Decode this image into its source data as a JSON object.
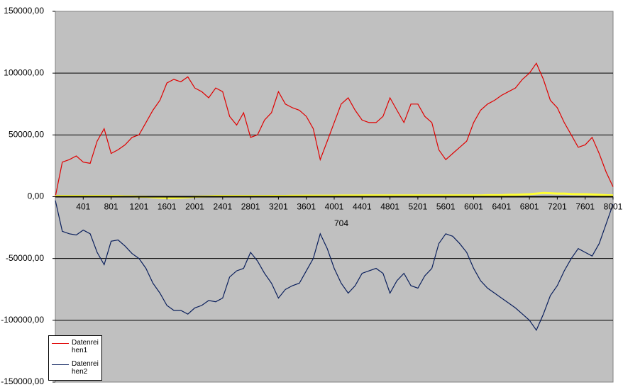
{
  "chart_data": {
    "type": "line",
    "xlabel": "704",
    "x": [
      1,
      101,
      201,
      301,
      401,
      501,
      601,
      701,
      801,
      901,
      1001,
      1101,
      1201,
      1301,
      1401,
      1501,
      1601,
      1701,
      1801,
      1901,
      2001,
      2101,
      2201,
      2301,
      2401,
      2501,
      2601,
      2701,
      2801,
      2901,
      3001,
      3101,
      3201,
      3301,
      3401,
      3501,
      3601,
      3701,
      3801,
      3901,
      4001,
      4101,
      4201,
      4301,
      4401,
      4501,
      4601,
      4701,
      4801,
      4901,
      5001,
      5101,
      5201,
      5301,
      5401,
      5501,
      5601,
      5701,
      5801,
      5901,
      6001,
      6101,
      6201,
      6301,
      6401,
      6501,
      6601,
      6701,
      6801,
      6901,
      7001,
      7101,
      7201,
      7301,
      7401,
      7501,
      7601,
      7701,
      7801,
      7901,
      8001
    ],
    "series": [
      {
        "name": "Datenreihen1",
        "color": "#e00000",
        "values": [
          0,
          28000,
          30000,
          33000,
          28000,
          27000,
          45000,
          55000,
          35000,
          38000,
          42000,
          48000,
          50000,
          60000,
          70000,
          78000,
          92000,
          95000,
          93000,
          97000,
          88000,
          85000,
          80000,
          88000,
          85000,
          65000,
          58000,
          68000,
          48000,
          50000,
          62000,
          68000,
          85000,
          75000,
          72000,
          70000,
          65000,
          55000,
          30000,
          45000,
          60000,
          75000,
          80000,
          70000,
          62000,
          60000,
          60000,
          65000,
          80000,
          70000,
          60000,
          75000,
          75000,
          65000,
          60000,
          38000,
          30000,
          35000,
          40000,
          45000,
          60000,
          70000,
          75000,
          78000,
          82000,
          85000,
          88000,
          95000,
          100000,
          108000,
          95000,
          78000,
          72000,
          60000,
          50000,
          40000,
          42000,
          48000,
          35000,
          20000,
          8000
        ]
      },
      {
        "name": "Datenreihen2",
        "color": "#0a1f5c",
        "values": [
          -3000,
          -28000,
          -30000,
          -31000,
          -27000,
          -30000,
          -45000,
          -55000,
          -36000,
          -35000,
          -40000,
          -46000,
          -50000,
          -58000,
          -70000,
          -78000,
          -88000,
          -92000,
          -92000,
          -95000,
          -90000,
          -88000,
          -84000,
          -85000,
          -82000,
          -65000,
          -60000,
          -58000,
          -45000,
          -52000,
          -62000,
          -70000,
          -82000,
          -75000,
          -72000,
          -70000,
          -60000,
          -50000,
          -30000,
          -42000,
          -58000,
          -70000,
          -78000,
          -72000,
          -62000,
          -60000,
          -58000,
          -62000,
          -78000,
          -68000,
          -62000,
          -72000,
          -74000,
          -64000,
          -58000,
          -38000,
          -30000,
          -32000,
          -38000,
          -45000,
          -58000,
          -68000,
          -74000,
          -78000,
          -82000,
          -86000,
          -90000,
          -95000,
          -100000,
          -108000,
          -95000,
          -80000,
          -72000,
          -60000,
          -50000,
          -42000,
          -45000,
          -48000,
          -38000,
          -22000,
          -6000
        ]
      },
      {
        "color": "#ffff33",
        "values": [
          500,
          500,
          500,
          500,
          500,
          500,
          500,
          500,
          500,
          500,
          300,
          300,
          0,
          0,
          -500,
          -800,
          -1000,
          -1000,
          -800,
          -500,
          0,
          200,
          300,
          500,
          500,
          500,
          500,
          500,
          500,
          500,
          500,
          600,
          600,
          600,
          700,
          700,
          800,
          800,
          800,
          800,
          800,
          900,
          900,
          900,
          1000,
          1000,
          1000,
          1000,
          1000,
          1000,
          1000,
          1000,
          1000,
          1000,
          1000,
          1000,
          1000,
          1000,
          1000,
          1000,
          1000,
          1000,
          1200,
          1200,
          1200,
          1500,
          1500,
          1800,
          2000,
          2500,
          3000,
          2800,
          2500,
          2500,
          2200,
          2000,
          2000,
          1800,
          1500,
          1200,
          1000
        ]
      }
    ],
    "xlim": [
      1,
      8001
    ],
    "xticks": [
      401,
      801,
      1201,
      1601,
      2001,
      2401,
      2801,
      3201,
      3601,
      4001,
      4401,
      4801,
      5201,
      5601,
      6001,
      6401,
      6801,
      7201,
      7601,
      8001
    ],
    "ylim": [
      -150000,
      150000
    ],
    "yticks": [
      {
        "value": -150000,
        "label": "-150000,00"
      },
      {
        "value": -100000,
        "label": "-100000,00"
      },
      {
        "value": -50000,
        "label": "-50000,00"
      },
      {
        "value": 0,
        "label": "0,00"
      },
      {
        "value": 50000,
        "label": "50000,00"
      },
      {
        "value": 100000,
        "label": "100000,00"
      },
      {
        "value": 150000,
        "label": "150000,00"
      }
    ],
    "grid": true,
    "legend": "bottom-left"
  }
}
